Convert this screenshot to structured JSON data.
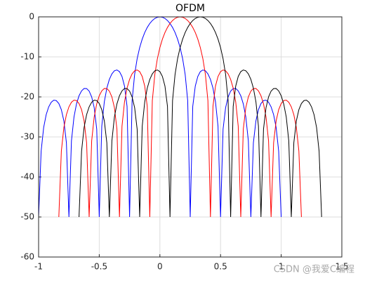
{
  "chart_data": {
    "type": "line",
    "title": "OFDM",
    "x": [
      -1,
      -0.9792,
      -0.9583,
      -0.9375,
      -0.9167,
      -0.8958,
      -0.875,
      -0.8542,
      -0.8333,
      -0.8125,
      -0.7917,
      -0.7708,
      -0.75,
      -0.7292,
      -0.7083,
      -0.6875,
      -0.6667,
      -0.6458,
      -0.625,
      -0.6042,
      -0.5833,
      -0.5625,
      -0.5417,
      -0.5208,
      -0.5,
      -0.4792,
      -0.4583,
      -0.4375,
      -0.4167,
      -0.3958,
      -0.375,
      -0.3542,
      -0.3333,
      -0.3125,
      -0.2917,
      -0.2708,
      -0.25,
      -0.2292,
      -0.2083,
      -0.1875,
      -0.1667,
      -0.1458,
      -0.125,
      -0.1042,
      -0.0833,
      -0.0625,
      -0.0417,
      -0.0208,
      0,
      0.0208,
      0.0417,
      0.0625,
      0.0833,
      0.1042,
      0.125,
      0.1458,
      0.1667,
      0.1875,
      0.2083,
      0.2292,
      0.25,
      0.2708,
      0.2917,
      0.3125,
      0.3333,
      0.3542,
      0.375,
      0.3958,
      0.4167,
      0.4375,
      0.4583,
      0.4792,
      0.5,
      0.5208,
      0.5417,
      0.5625,
      0.5833,
      0.6042,
      0.625,
      0.6458,
      0.6667,
      0.6875,
      0.7083,
      0.7292,
      0.75,
      0.7708,
      0.7917,
      0.8125,
      0.8333,
      0.8542,
      0.875,
      0.8958,
      0.9167,
      0.9375,
      0.9583,
      0.9792,
      1,
      1.0208,
      1.0417,
      1.0625,
      1.0833,
      1.1042,
      1.125,
      1.1458,
      1.1667,
      1.1875,
      1.2083,
      1.2292,
      1.25,
      1.2708,
      1.2917,
      1.3125,
      1.3333
    ],
    "series": [
      {
        "color": "#0000ff",
        "values": [
          -50,
          -33.54,
          -27.64,
          -24.43,
          -22.48,
          -21.33,
          -20.82,
          -20.92,
          -21.65,
          -23.19,
          -25.98,
          -31.46,
          -50,
          -30.98,
          -25.01,
          -21.74,
          -19.71,
          -18.49,
          -17.9,
          -17.91,
          -18.55,
          -20,
          -22.68,
          -28.06,
          -50,
          -27.33,
          -21.23,
          -17.81,
          -15.63,
          -14.24,
          -13.47,
          -13.27,
          -13.69,
          -14.89,
          -17.3,
          -22.38,
          -50,
          -20.93,
          -14.38,
          -10.45,
          -7.67,
          -5.56,
          -3.92,
          -2.64,
          -1.65,
          -0.91,
          -0.4,
          -0.1,
          0,
          -0.1,
          -0.4,
          -0.91,
          -1.65,
          -2.64,
          -3.92,
          -5.56,
          -7.67,
          -10.45,
          -14.38,
          -20.93,
          -50,
          -22.38,
          -17.3,
          -14.89,
          -13.69,
          -13.27,
          -13.47,
          -14.24,
          -15.63,
          -17.81,
          -21.23,
          -27.33,
          -50,
          -28.06,
          -22.68,
          -20,
          -18.55,
          -17.91,
          -17.9,
          -18.49,
          -19.71,
          -21.74,
          -25.01,
          -30.98,
          -50,
          -31.46,
          -25.98,
          -23.19,
          -21.65,
          -20.92,
          -20.82,
          -21.33,
          -22.48,
          -24.43,
          -27.64,
          -33.54,
          -50,
          null,
          null,
          null,
          null,
          null,
          null,
          null,
          null,
          null,
          null,
          null,
          null,
          null,
          null,
          null,
          null
        ]
      },
      {
        "color": "#ff0000",
        "values": [
          null,
          null,
          null,
          null,
          null,
          null,
          null,
          null,
          -50,
          -33.54,
          -27.64,
          -24.43,
          -22.48,
          -21.33,
          -20.82,
          -20.92,
          -21.65,
          -23.19,
          -25.98,
          -31.46,
          -50,
          -30.98,
          -25.01,
          -21.74,
          -19.71,
          -18.49,
          -17.9,
          -17.91,
          -18.55,
          -20,
          -22.68,
          -28.06,
          -50,
          -27.33,
          -21.23,
          -17.81,
          -15.63,
          -14.24,
          -13.47,
          -13.27,
          -13.69,
          -14.89,
          -17.3,
          -22.38,
          -50,
          -20.93,
          -14.38,
          -10.45,
          -7.67,
          -5.56,
          -3.92,
          -2.64,
          -1.65,
          -0.91,
          -0.4,
          -0.1,
          0,
          -0.1,
          -0.4,
          -0.91,
          -1.65,
          -2.64,
          -3.92,
          -5.56,
          -7.67,
          -10.45,
          -14.38,
          -20.93,
          -50,
          -22.38,
          -17.3,
          -14.89,
          -13.69,
          -13.27,
          -13.47,
          -14.24,
          -15.63,
          -17.81,
          -21.23,
          -27.33,
          -50,
          -28.06,
          -22.68,
          -20,
          -18.55,
          -17.91,
          -17.9,
          -18.49,
          -19.71,
          -21.74,
          -25.01,
          -30.98,
          -50,
          -31.46,
          -25.98,
          -23.19,
          -21.65,
          -20.92,
          -20.82,
          -21.33,
          -22.48,
          -24.43,
          -27.64,
          -33.54,
          -50,
          null,
          null,
          null,
          null,
          null,
          null,
          null,
          null
        ]
      },
      {
        "color": "#000000",
        "values": [
          null,
          null,
          null,
          null,
          null,
          null,
          null,
          null,
          null,
          null,
          null,
          null,
          null,
          null,
          null,
          null,
          -50,
          -33.54,
          -27.64,
          -24.43,
          -22.48,
          -21.33,
          -20.82,
          -20.92,
          -21.65,
          -23.19,
          -25.98,
          -31.46,
          -50,
          -30.98,
          -25.01,
          -21.74,
          -19.71,
          -18.49,
          -17.9,
          -17.91,
          -18.55,
          -20,
          -22.68,
          -28.06,
          -50,
          -27.33,
          -21.23,
          -17.81,
          -15.63,
          -14.24,
          -13.47,
          -13.27,
          -13.69,
          -14.89,
          -17.3,
          -22.38,
          -50,
          -20.93,
          -14.38,
          -10.45,
          -7.67,
          -5.56,
          -3.92,
          -2.64,
          -1.65,
          -0.91,
          -0.4,
          -0.1,
          0,
          -0.1,
          -0.4,
          -0.91,
          -1.65,
          -2.64,
          -3.92,
          -5.56,
          -7.67,
          -10.45,
          -14.38,
          -20.93,
          -50,
          -22.38,
          -17.3,
          -14.89,
          -13.69,
          -13.27,
          -13.47,
          -14.24,
          -15.63,
          -17.81,
          -21.23,
          -27.33,
          -50,
          -28.06,
          -22.68,
          -20,
          -18.55,
          -17.91,
          -17.9,
          -18.49,
          -19.71,
          -21.74,
          -25.01,
          -30.98,
          -50,
          -31.46,
          -25.98,
          -23.19,
          -21.65,
          -20.92,
          -20.82,
          -21.33,
          -22.48,
          -24.43,
          -27.64,
          -33.54,
          -50
        ]
      }
    ],
    "xlim": [
      -1,
      1.5
    ],
    "xticks": [
      -1,
      -0.5,
      0,
      0.5,
      1,
      1.5
    ],
    "ylim": [
      -60,
      0
    ],
    "yticks": [
      -60,
      -50,
      -40,
      -30,
      -20,
      -10,
      0
    ],
    "grid": true,
    "watermark": "CSDN @我爱C编程"
  }
}
